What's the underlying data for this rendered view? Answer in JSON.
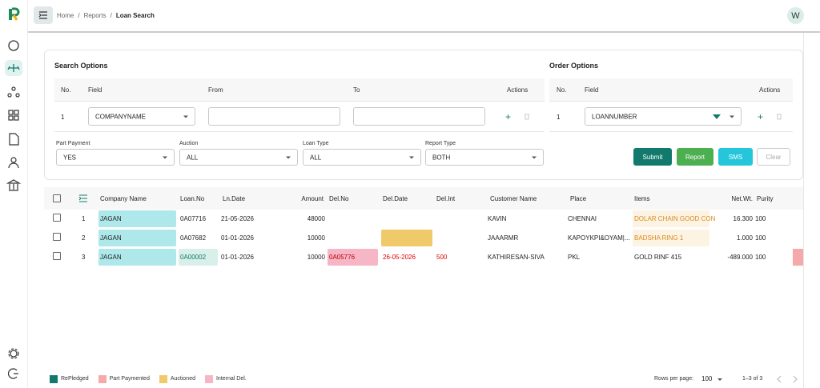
{
  "breadcrumb": [
    "Home",
    "Reports",
    "Loan Search"
  ],
  "avatar": "W",
  "search_options": {
    "title": "Search Options",
    "columns": [
      "No.",
      "Field",
      "From",
      "To",
      "Actions"
    ],
    "rows": [
      {
        "no": "1",
        "field": "COMPANYNAME"
      }
    ]
  },
  "order_options": {
    "title": "Order Options",
    "columns": [
      "No.",
      "Field",
      "Actions"
    ],
    "rows": [
      {
        "no": "1",
        "field": "LOANNUMBER"
      }
    ]
  },
  "filters": [
    {
      "label": "Part Payment",
      "value": "YES"
    },
    {
      "label": "Auction",
      "value": "ALL"
    },
    {
      "label": "Loan Type",
      "value": "ALL"
    },
    {
      "label": "Report Type",
      "value": "BOTH"
    }
  ],
  "buttons": [
    "Submit",
    "Report",
    "SMS",
    "Clear"
  ],
  "results": {
    "columns": [
      "Company Name",
      "Loan.No",
      "Ln.Date",
      "Amount",
      "Del.No",
      "Del.Date",
      "Del.Int",
      "Customer Name",
      "Place",
      "Items",
      "Net.Wt.",
      "Purity"
    ],
    "rows": [
      {
        "index": "1",
        "cells": [
          "JAGAN",
          "0A07716",
          "21-05-2026",
          "48000",
          null,
          null,
          null,
          "KAVIN",
          "CHENNAI",
          "DOLAR CHAIN GOOD CON",
          "16.300",
          "100"
        ]
      },
      {
        "index": "2",
        "cells": [
          "JAGAN",
          "0A07682",
          "01-01-2026",
          "10000",
          null,
          null,
          null,
          "JAAARMR",
          "KAPOYKPI&OYAM|...",
          "BADSHA RING 1",
          "1.000",
          "100"
        ]
      },
      {
        "index": "3",
        "cells": [
          "JAGAN",
          "0A00002",
          "01-01-2026",
          "10000",
          "0A05776",
          "26-05-2026",
          "500",
          "KATHIRESAN-SIVA",
          "PKL",
          "GOLD RINF 415",
          "-489.000",
          "100"
        ]
      }
    ]
  },
  "legend": [
    {
      "label": "RePledged",
      "color": "#127a6c"
    },
    {
      "label": "Part Paymented",
      "color": "#f6a9a9"
    },
    {
      "label": "Auctioned",
      "color": "#f0c96a"
    },
    {
      "label": "Internal Del.",
      "color": "#f7b6c6"
    }
  ],
  "pagination": {
    "rows_per_page_label": "Rows per page:",
    "rows_per_page": "100",
    "range": "1–3 of 3"
  }
}
